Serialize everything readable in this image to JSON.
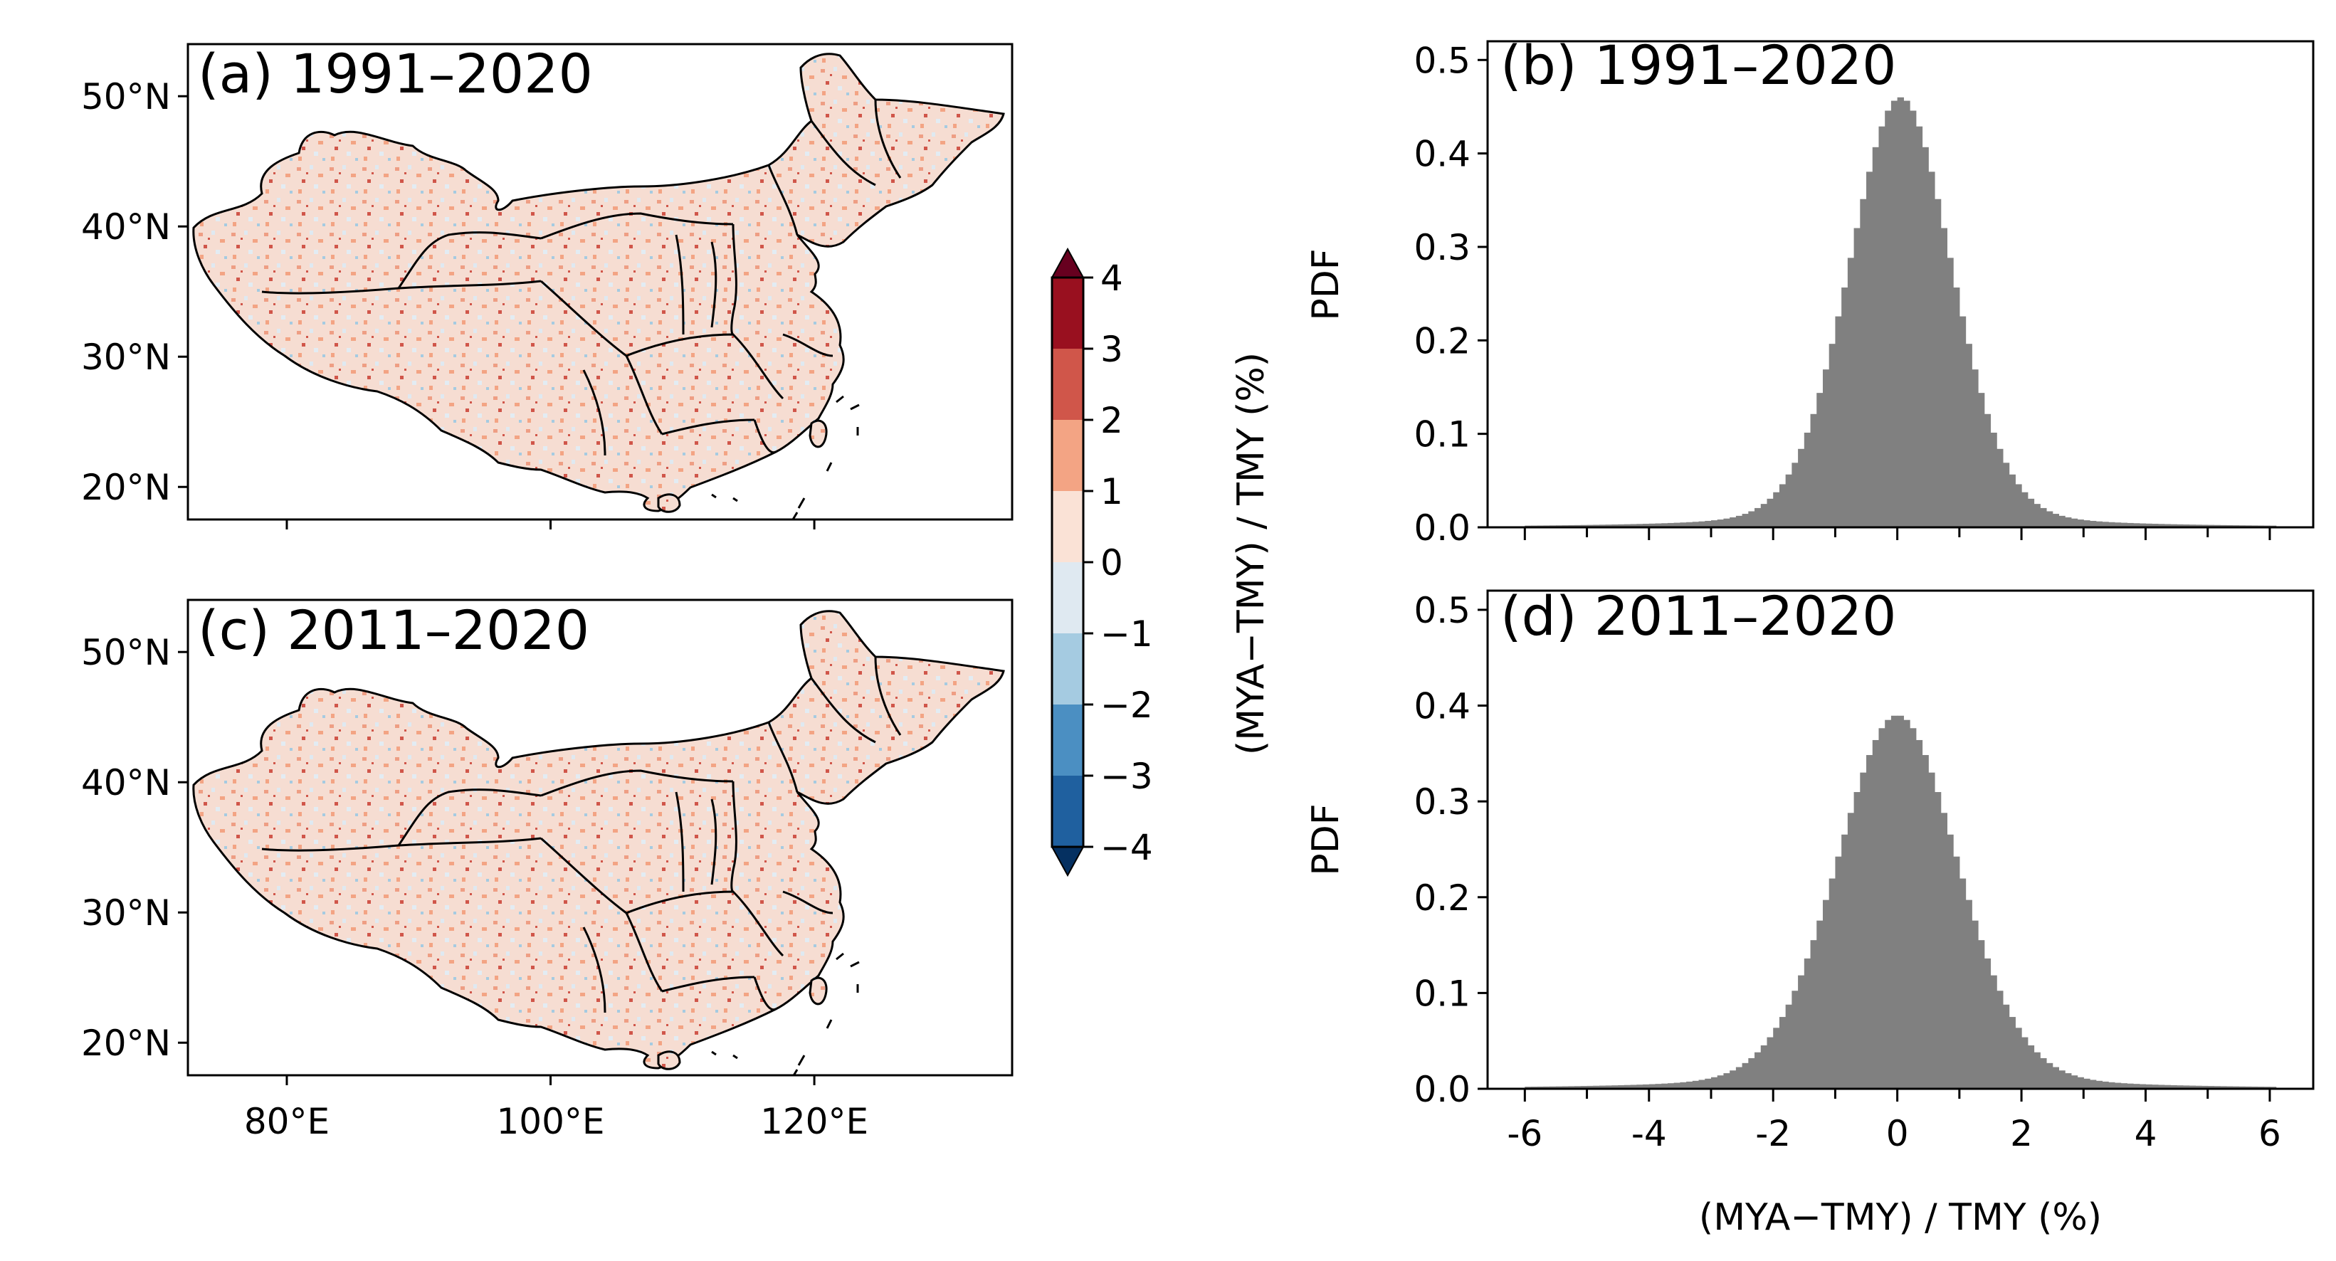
{
  "chart_data": [
    {
      "type": "heatmap",
      "panel_label": "(a) 1991–2020",
      "description_kind": "map",
      "y_tick_labels": [
        "50°N",
        "40°N",
        "30°N",
        "20°N"
      ],
      "y_tick_values": [
        50,
        40,
        30,
        20
      ],
      "x_tick_values": [
        80,
        100,
        120
      ],
      "xlim": [
        72.5,
        135
      ],
      "ylim": [
        17.5,
        54
      ]
    },
    {
      "type": "heatmap",
      "panel_label": "(c) 2011–2020",
      "description_kind": "map",
      "y_tick_labels": [
        "50°N",
        "40°N",
        "30°N",
        "20°N"
      ],
      "y_tick_values": [
        50,
        40,
        30,
        20
      ],
      "x_tick_labels": [
        "80°E",
        "100°E",
        "120°E"
      ],
      "x_tick_values": [
        80,
        100,
        120
      ],
      "xlim": [
        72.5,
        135
      ],
      "ylim": [
        17.5,
        54
      ]
    },
    {
      "type": "bar",
      "panel_label": "(b) 1991–2020",
      "ylabel": "PDF",
      "xlim": [
        -6.6,
        6.7
      ],
      "ylim": [
        0,
        0.52
      ],
      "y_tick_labels": [
        "0.5",
        "0.4",
        "0.3",
        "0.2",
        "0.1",
        "0.0"
      ],
      "y_tick_values": [
        0.5,
        0.4,
        0.3,
        0.2,
        0.1,
        0.0
      ],
      "x_tick_values": [
        -6,
        -4,
        -2,
        0,
        2,
        4,
        6
      ],
      "distribution": {
        "mean": 0.05,
        "std": 0.85,
        "peak": 0.46
      },
      "bar_color": "#808080"
    },
    {
      "type": "bar",
      "panel_label": "(d) 2011–2020",
      "ylabel": "PDF",
      "xlabel": "(MYA−TMY) / TMY (%)",
      "xlim": [
        -6.6,
        6.7
      ],
      "ylim": [
        0,
        0.52
      ],
      "y_tick_labels": [
        "0.5",
        "0.4",
        "0.3",
        "0.2",
        "0.1",
        "0.0"
      ],
      "y_tick_values": [
        0.5,
        0.4,
        0.3,
        0.2,
        0.1,
        0.0
      ],
      "x_tick_labels": [
        "-6",
        "-4",
        "-2",
        "0",
        "2",
        "4",
        "6"
      ],
      "x_tick_values": [
        -6,
        -4,
        -2,
        0,
        2,
        4,
        6
      ],
      "distribution": {
        "mean": 0.0,
        "std": 1.0,
        "peak": 0.39
      },
      "bar_color": "#808080"
    }
  ],
  "colorbar": {
    "label": "(MYA−TMY) / TMY (%)",
    "range": [
      -4,
      4
    ],
    "tick_labels": [
      "4",
      "3",
      "2",
      "1",
      "0",
      "−1",
      "−2",
      "−3",
      "−4"
    ],
    "tick_values": [
      4,
      3,
      2,
      1,
      0,
      -1,
      -2,
      -3,
      -4
    ],
    "bins": [
      {
        "from": 3,
        "to": 4,
        "color": "#99101f"
      },
      {
        "from": 2,
        "to": 3,
        "color": "#d0564a"
      },
      {
        "from": 1,
        "to": 2,
        "color": "#f3a484"
      },
      {
        "from": 0,
        "to": 1,
        "color": "#fae2d6"
      },
      {
        "from": -1,
        "to": 0,
        "color": "#dfe9f1"
      },
      {
        "from": -2,
        "to": -1,
        "color": "#a5cbe1"
      },
      {
        "from": -3,
        "to": -2,
        "color": "#4b8fc2"
      },
      {
        "from": -4,
        "to": -3,
        "color": "#1f609f"
      }
    ],
    "over_color": "#67001f",
    "under_color": "#053061"
  }
}
